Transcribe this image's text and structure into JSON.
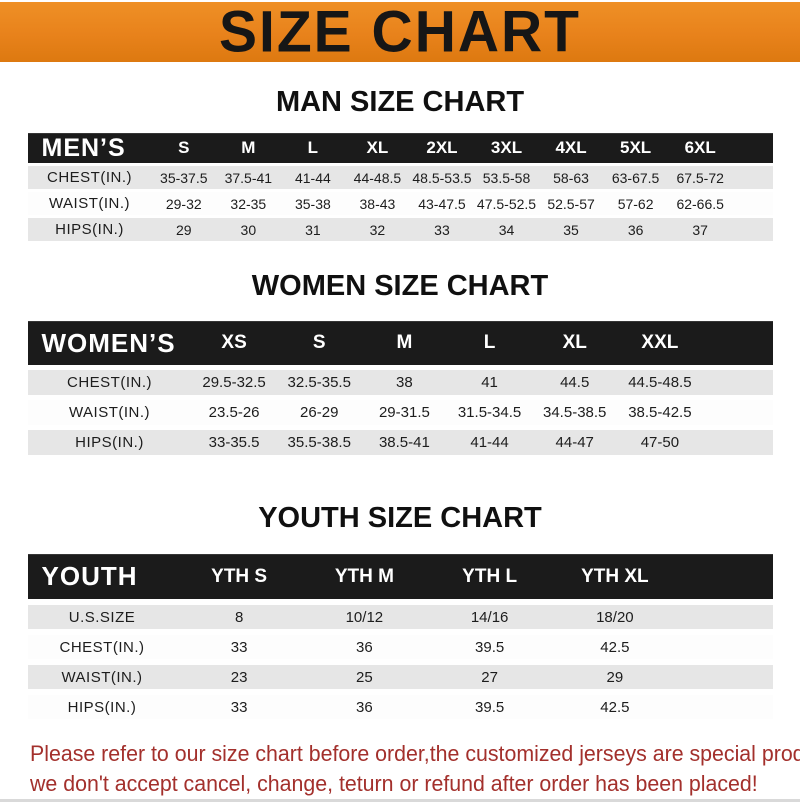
{
  "banner": {
    "title": "SIZE CHART"
  },
  "sections": [
    {
      "id": "men",
      "title": "MAN SIZE CHART",
      "header_label": "MEN’S",
      "columns": [
        "S",
        "M",
        "L",
        "XL",
        "2XL",
        "3XL",
        "4XL",
        "5XL",
        "6XL"
      ],
      "rows": [
        {
          "label": "CHEST(IN.)",
          "values": [
            "35-37.5",
            "37.5-41",
            "41-44",
            "44-48.5",
            "48.5-53.5",
            "53.5-58",
            "58-63",
            "63-67.5",
            "67.5-72"
          ]
        },
        {
          "label": "WAIST(IN.)",
          "values": [
            "29-32",
            "32-35",
            "35-38",
            "38-43",
            "43-47.5",
            "47.5-52.5",
            "52.5-57",
            "57-62",
            "62-66.5"
          ]
        },
        {
          "label": "HIPS(IN.)",
          "values": [
            "29",
            "30",
            "31",
            "32",
            "33",
            "34",
            "35",
            "36",
            "37"
          ]
        }
      ]
    },
    {
      "id": "women",
      "title": "WOMEN SIZE CHART",
      "header_label": "WOMEN’S",
      "columns": [
        "XS",
        "S",
        "M",
        "L",
        "XL",
        "XXL"
      ],
      "rows": [
        {
          "label": "CHEST(IN.)",
          "values": [
            "29.5-32.5",
            "32.5-35.5",
            "38",
            "41",
            "44.5",
            "44.5-48.5"
          ]
        },
        {
          "label": "WAIST(IN.)",
          "values": [
            "23.5-26",
            "26-29",
            "29-31.5",
            "31.5-34.5",
            "34.5-38.5",
            "38.5-42.5"
          ]
        },
        {
          "label": "HIPS(IN.)",
          "values": [
            "33-35.5",
            "35.5-38.5",
            "38.5-41",
            "41-44",
            "44-47",
            "47-50"
          ]
        }
      ]
    },
    {
      "id": "youth",
      "title": "YOUTH SIZE CHART",
      "header_label": "YOUTH",
      "columns": [
        "YTH S",
        "YTH M",
        "YTH L",
        "YTH XL"
      ],
      "rows": [
        {
          "label": "U.S.SIZE",
          "values": [
            "8",
            "10/12",
            "14/16",
            "18/20"
          ]
        },
        {
          "label": "CHEST(IN.)",
          "values": [
            "33",
            "36",
            "39.5",
            "42.5"
          ]
        },
        {
          "label": "WAIST(IN.)",
          "values": [
            "23",
            "25",
            "27",
            "29"
          ]
        },
        {
          "label": "HIPS(IN.)",
          "values": [
            "33",
            "36",
            "39.5",
            "42.5"
          ]
        }
      ]
    }
  ],
  "footer": {
    "line1": "Please refer to our size chart before order,the customized jerseys are special products,",
    "line2": "we don't accept cancel, change, teturn or refund after order has been placed!"
  },
  "colors": {
    "banner_orange": "#E8821B",
    "banner_orange_light": "#EF9026",
    "banner_orange_dark": "#DD7910",
    "header_bar_black": "#1B1B1B",
    "row_stripe_gray": "#E6E6E6",
    "notice_red": "#A3302C"
  }
}
